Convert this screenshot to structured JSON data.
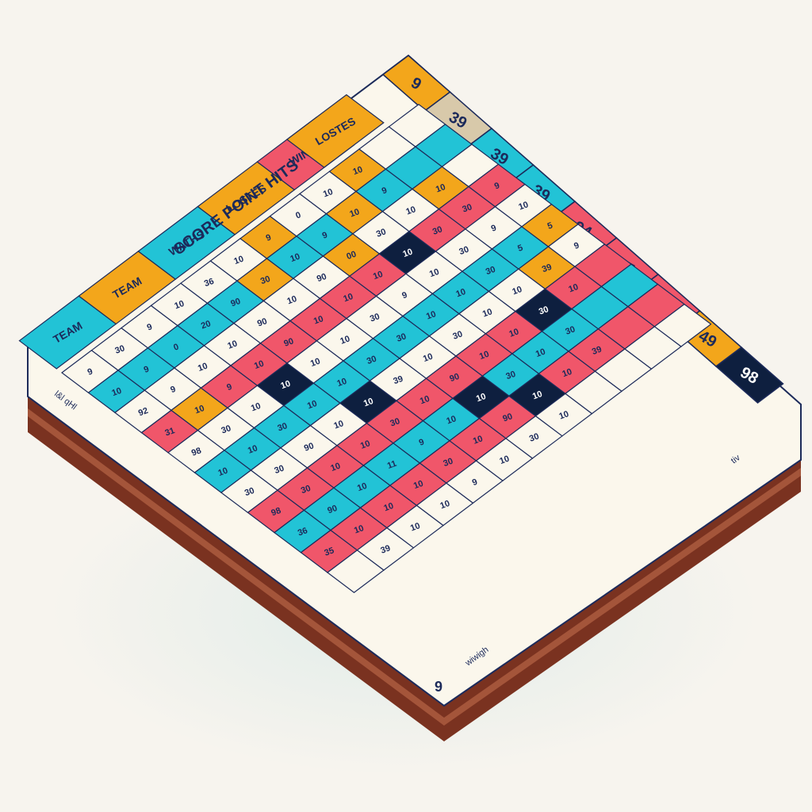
{
  "board": {
    "title": "SCORE POINT HITS",
    "header_words": [
      "TEAM",
      "TEAM",
      "WATHS",
      "LOSTES",
      "WINTS",
      "LOSTES"
    ],
    "side_column_values": [
      "9",
      "39",
      "39",
      "39",
      "94",
      "3T",
      "36",
      "49",
      "98"
    ],
    "bottom_scribbles": [
      "tiv",
      "wiwigh",
      "9"
    ],
    "left_edge_label": "l&l qHl"
  },
  "grid": {
    "rows": [
      [
        "9",
        "30",
        "9",
        "10",
        "36",
        "10",
        "9",
        "0",
        "10",
        "10",
        "",
        ""
      ],
      [
        "10",
        "9",
        "0",
        "20",
        "90",
        "30",
        "10",
        "9",
        "10",
        "9",
        "",
        ""
      ],
      [
        "92",
        "9",
        "10",
        "10",
        "90",
        "10",
        "90",
        "00",
        "30",
        "10",
        "10",
        ""
      ],
      [
        "31",
        "10",
        "9",
        "10",
        "90",
        "10",
        "10",
        "10",
        "10",
        "30",
        "30",
        "9"
      ],
      [
        "98",
        "30",
        "10",
        "10",
        "10",
        "10",
        "30",
        "9",
        "10",
        "30",
        "9",
        "10"
      ],
      [
        "10",
        "10",
        "30",
        "10",
        "10",
        "30",
        "30",
        "10",
        "10",
        "30",
        "5",
        "5"
      ],
      [
        "30",
        "30",
        "90",
        "10",
        "10",
        "39",
        "10",
        "30",
        "10",
        "10",
        "39",
        "9"
      ],
      [
        "98",
        "30",
        "10",
        "10",
        "30",
        "10",
        "90",
        "10",
        "10",
        "30",
        "10",
        ""
      ],
      [
        "36",
        "90",
        "10",
        "11",
        "9",
        "10",
        "10",
        "30",
        "10",
        "30",
        "",
        ""
      ],
      [
        "35",
        "10",
        "10",
        "10",
        "30",
        "10",
        "90",
        "10",
        "10",
        "39",
        "",
        ""
      ],
      [
        "",
        "39",
        "10",
        "10",
        "9",
        "10",
        "30",
        "10",
        "",
        "",
        "",
        ""
      ]
    ],
    "row_colors": [
      "cream",
      "cyan",
      "cream",
      "red",
      "cream",
      "cyan",
      "cream",
      "red",
      "cyan",
      "red",
      "cream"
    ]
  },
  "colors": {
    "cyan": "#22c3d6",
    "red": "#f0566a",
    "orange": "#f3a61b",
    "navy": "#0e1f3f",
    "cream": "#fbf7ec",
    "tan": "#d8c9aa",
    "wood": "#8a3b26",
    "ink": "#1c2a5a"
  }
}
